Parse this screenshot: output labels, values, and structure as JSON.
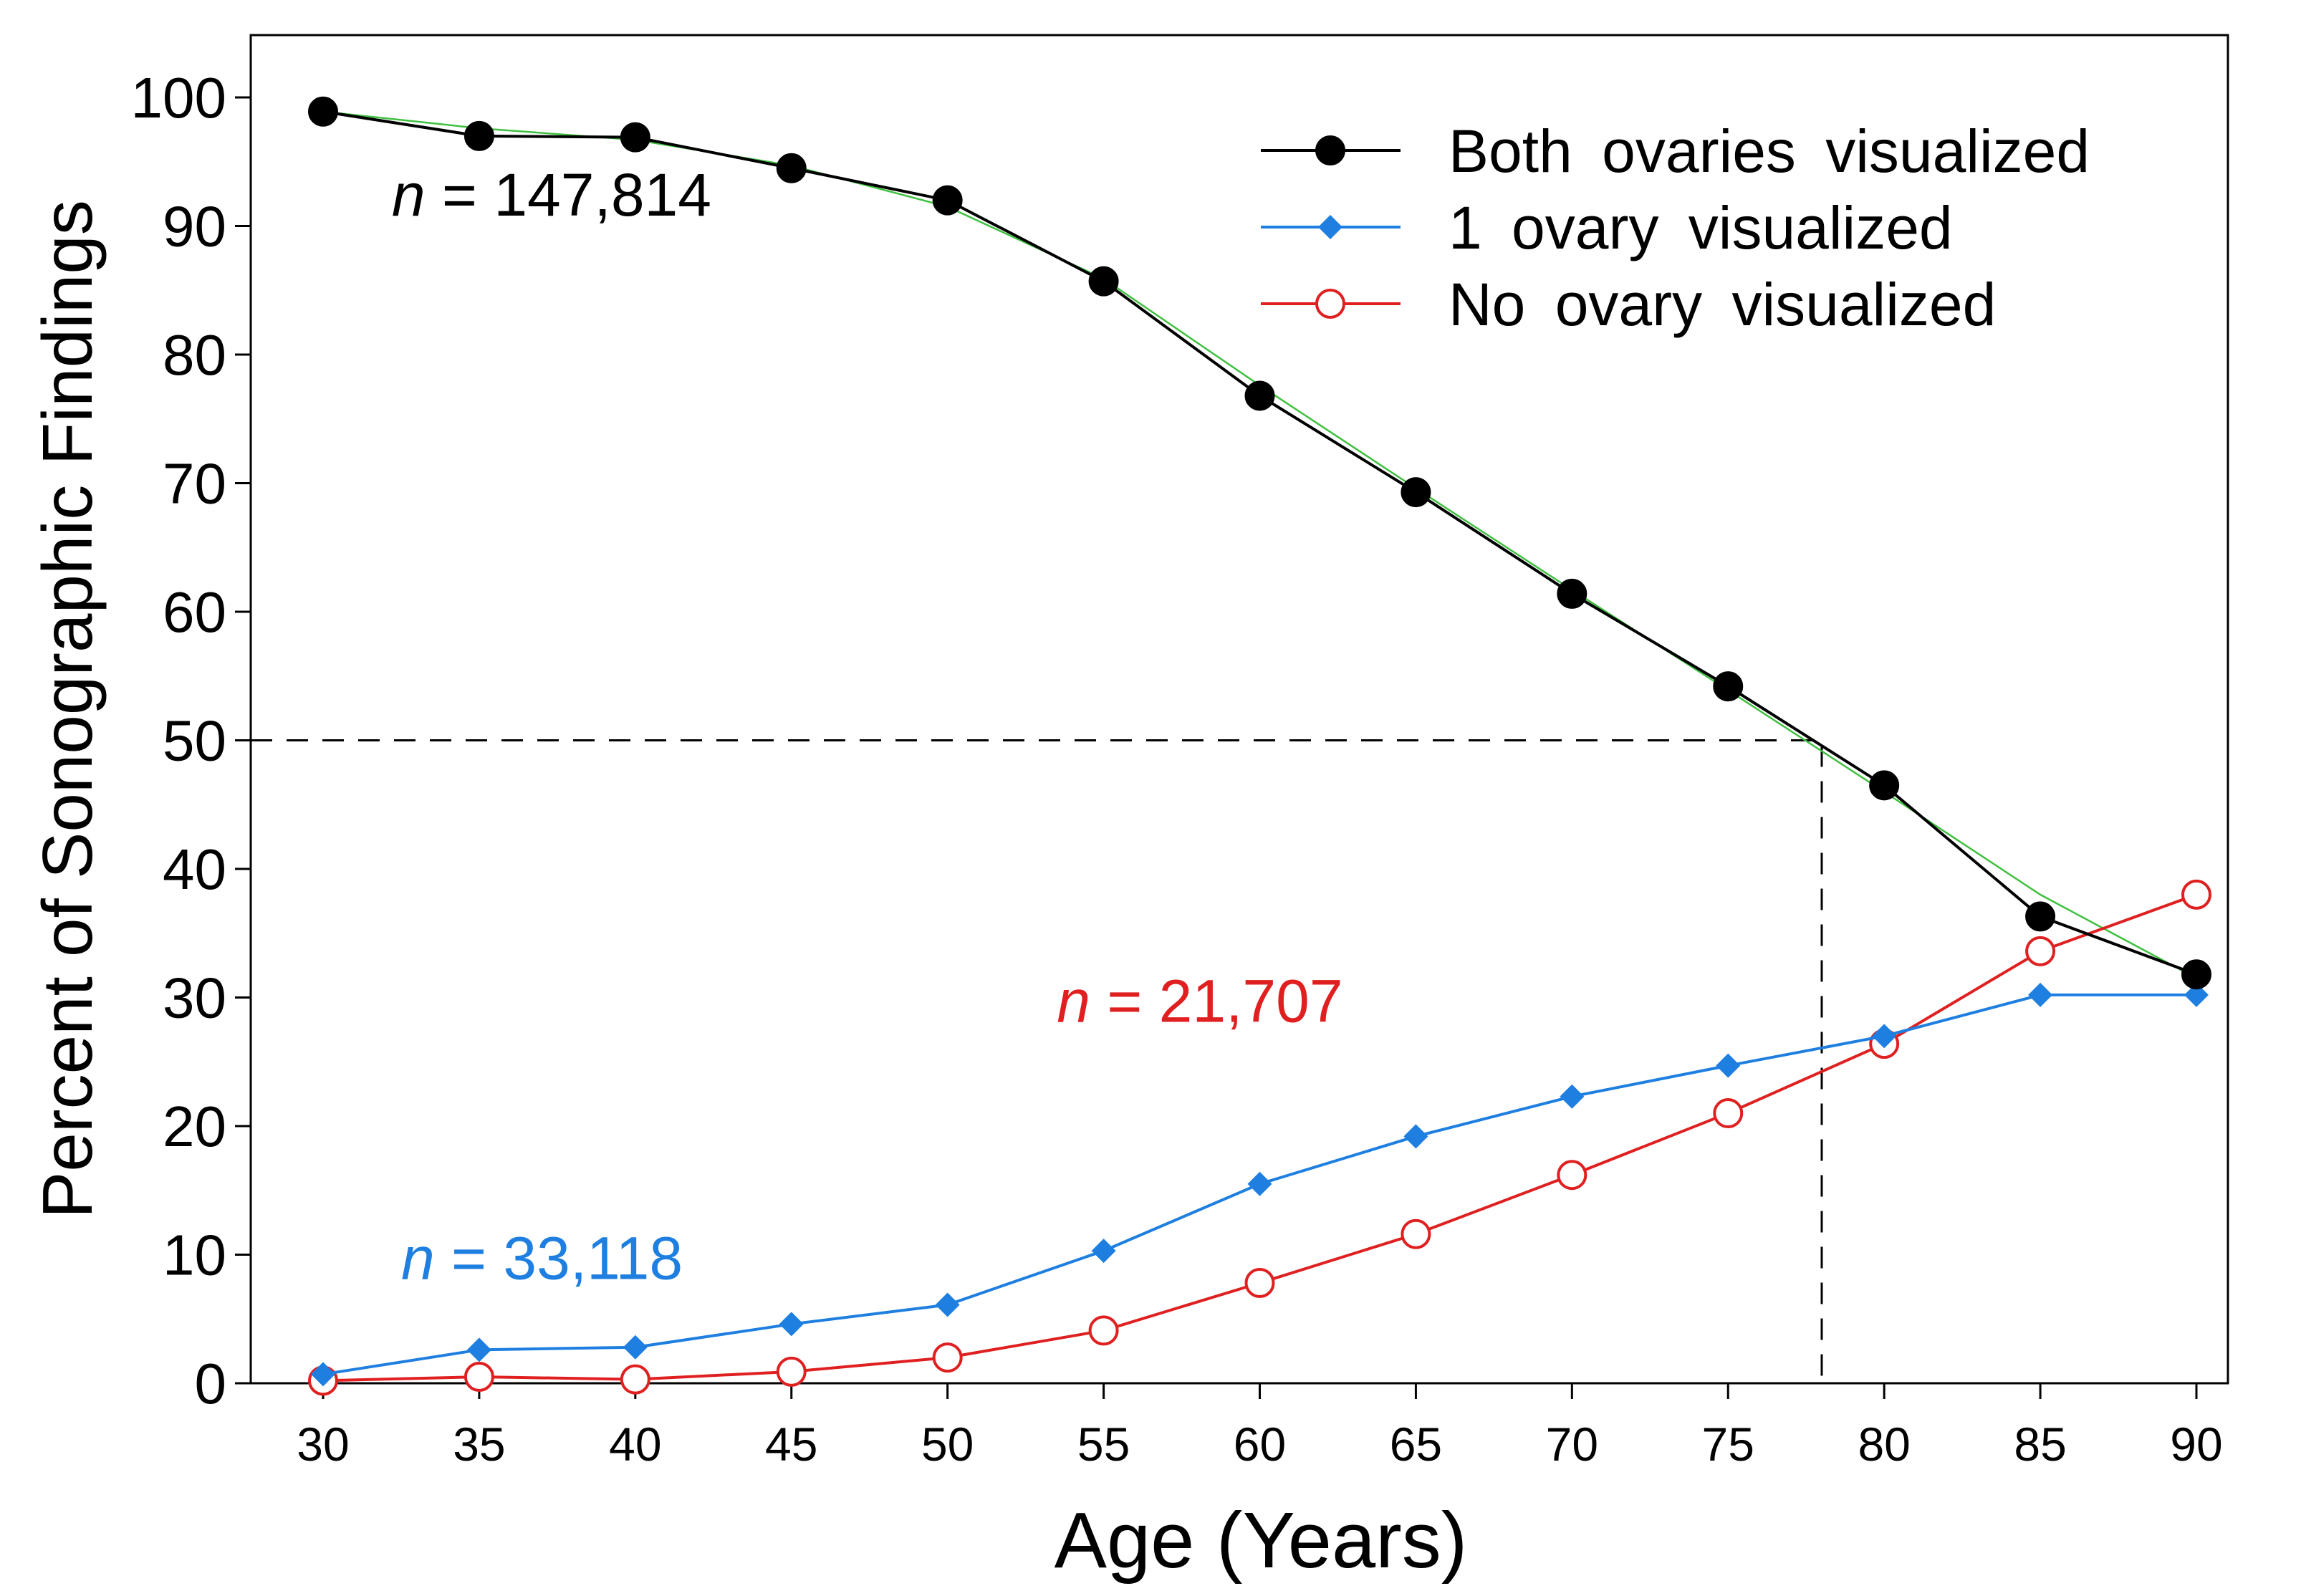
{
  "chart_data": {
    "type": "line",
    "xlabel": "Age (Years)",
    "ylabel": "Percent of Sonographic Findings",
    "xlim": [
      27.5,
      93
    ],
    "ylim": [
      0,
      105
    ],
    "xticks": [
      30,
      35,
      40,
      45,
      50,
      55,
      60,
      65,
      70,
      75,
      80,
      85,
      90
    ],
    "yticks": [
      0,
      10,
      20,
      30,
      40,
      50,
      60,
      70,
      80,
      90,
      100
    ],
    "grid": false,
    "legend_position": "top-right",
    "x": [
      30,
      35,
      40,
      45,
      50,
      55,
      60,
      65,
      70,
      75,
      80,
      85,
      90
    ],
    "series": [
      {
        "name": "Both ovaries visualized",
        "color": "#000000",
        "marker": "filled-circle",
        "values": [
          98.9,
          97.0,
          96.9,
          94.5,
          92.0,
          85.7,
          76.8,
          69.3,
          61.4,
          54.2,
          46.5,
          36.3,
          31.8
        ]
      },
      {
        "name": "1 ovary visualized",
        "color": "#1e7fe0",
        "marker": "filled-diamond",
        "values": [
          0.7,
          2.6,
          2.8,
          4.6,
          6.1,
          10.3,
          15.5,
          19.2,
          22.3,
          24.7,
          27.0,
          30.2,
          30.2
        ]
      },
      {
        "name": "No ovary visualized",
        "color": "#e02020",
        "marker": "open-circle",
        "values": [
          0.2,
          0.5,
          0.3,
          0.9,
          2.0,
          4.1,
          7.8,
          11.6,
          16.2,
          21.0,
          26.4,
          33.6,
          38.0
        ]
      }
    ],
    "fit_curve": {
      "color": "#40c040",
      "x": [
        30,
        35,
        40,
        45,
        50,
        55,
        60,
        65,
        70,
        75,
        80,
        85,
        90
      ],
      "values": [
        98.9,
        97.6,
        96.7,
        94.7,
        91.5,
        85.9,
        77.6,
        69.6,
        61.7,
        53.9,
        46.0,
        38.0,
        31.5
      ]
    },
    "reference_lines": {
      "y": 50,
      "x": 78
    },
    "annotations": [
      {
        "n_text": "n",
        "text": " = 147,814",
        "color": "#000000",
        "x": 32.2,
        "y": 90.8
      },
      {
        "n_text": "n",
        "text": " = 33,118",
        "color": "#1e7fe0",
        "x": 32.5,
        "y": 8.1
      },
      {
        "n_text": "n",
        "text": " = 21,707",
        "color": "#e02020",
        "x": 53.5,
        "y": 28.1
      }
    ]
  }
}
